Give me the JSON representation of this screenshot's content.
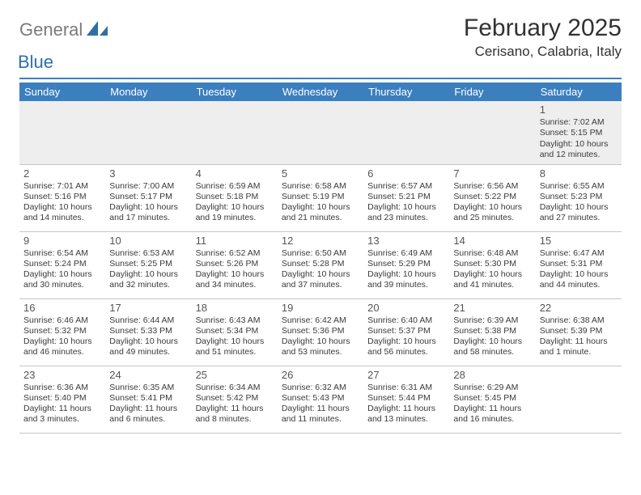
{
  "logo": {
    "general": "General",
    "blue": "Blue"
  },
  "title": "February 2025",
  "location": "Cerisano, Calabria, Italy",
  "colors": {
    "header_bar": "#3b7fbf",
    "header_text": "#ffffff",
    "rule": "#3b7fbf",
    "cell_border": "#c6c6c6",
    "first_row_bg": "#eeeeee",
    "text": "#3a3a3a",
    "logo_gray": "#7a7a7a",
    "logo_blue": "#2f6fa8"
  },
  "day_headers": [
    "Sunday",
    "Monday",
    "Tuesday",
    "Wednesday",
    "Thursday",
    "Friday",
    "Saturday"
  ],
  "weeks": [
    [
      null,
      null,
      null,
      null,
      null,
      null,
      {
        "n": "1",
        "sr": "Sunrise: 7:02 AM",
        "ss": "Sunset: 5:15 PM",
        "d1": "Daylight: 10 hours",
        "d2": "and 12 minutes."
      }
    ],
    [
      {
        "n": "2",
        "sr": "Sunrise: 7:01 AM",
        "ss": "Sunset: 5:16 PM",
        "d1": "Daylight: 10 hours",
        "d2": "and 14 minutes."
      },
      {
        "n": "3",
        "sr": "Sunrise: 7:00 AM",
        "ss": "Sunset: 5:17 PM",
        "d1": "Daylight: 10 hours",
        "d2": "and 17 minutes."
      },
      {
        "n": "4",
        "sr": "Sunrise: 6:59 AM",
        "ss": "Sunset: 5:18 PM",
        "d1": "Daylight: 10 hours",
        "d2": "and 19 minutes."
      },
      {
        "n": "5",
        "sr": "Sunrise: 6:58 AM",
        "ss": "Sunset: 5:19 PM",
        "d1": "Daylight: 10 hours",
        "d2": "and 21 minutes."
      },
      {
        "n": "6",
        "sr": "Sunrise: 6:57 AM",
        "ss": "Sunset: 5:21 PM",
        "d1": "Daylight: 10 hours",
        "d2": "and 23 minutes."
      },
      {
        "n": "7",
        "sr": "Sunrise: 6:56 AM",
        "ss": "Sunset: 5:22 PM",
        "d1": "Daylight: 10 hours",
        "d2": "and 25 minutes."
      },
      {
        "n": "8",
        "sr": "Sunrise: 6:55 AM",
        "ss": "Sunset: 5:23 PM",
        "d1": "Daylight: 10 hours",
        "d2": "and 27 minutes."
      }
    ],
    [
      {
        "n": "9",
        "sr": "Sunrise: 6:54 AM",
        "ss": "Sunset: 5:24 PM",
        "d1": "Daylight: 10 hours",
        "d2": "and 30 minutes."
      },
      {
        "n": "10",
        "sr": "Sunrise: 6:53 AM",
        "ss": "Sunset: 5:25 PM",
        "d1": "Daylight: 10 hours",
        "d2": "and 32 minutes."
      },
      {
        "n": "11",
        "sr": "Sunrise: 6:52 AM",
        "ss": "Sunset: 5:26 PM",
        "d1": "Daylight: 10 hours",
        "d2": "and 34 minutes."
      },
      {
        "n": "12",
        "sr": "Sunrise: 6:50 AM",
        "ss": "Sunset: 5:28 PM",
        "d1": "Daylight: 10 hours",
        "d2": "and 37 minutes."
      },
      {
        "n": "13",
        "sr": "Sunrise: 6:49 AM",
        "ss": "Sunset: 5:29 PM",
        "d1": "Daylight: 10 hours",
        "d2": "and 39 minutes."
      },
      {
        "n": "14",
        "sr": "Sunrise: 6:48 AM",
        "ss": "Sunset: 5:30 PM",
        "d1": "Daylight: 10 hours",
        "d2": "and 41 minutes."
      },
      {
        "n": "15",
        "sr": "Sunrise: 6:47 AM",
        "ss": "Sunset: 5:31 PM",
        "d1": "Daylight: 10 hours",
        "d2": "and 44 minutes."
      }
    ],
    [
      {
        "n": "16",
        "sr": "Sunrise: 6:46 AM",
        "ss": "Sunset: 5:32 PM",
        "d1": "Daylight: 10 hours",
        "d2": "and 46 minutes."
      },
      {
        "n": "17",
        "sr": "Sunrise: 6:44 AM",
        "ss": "Sunset: 5:33 PM",
        "d1": "Daylight: 10 hours",
        "d2": "and 49 minutes."
      },
      {
        "n": "18",
        "sr": "Sunrise: 6:43 AM",
        "ss": "Sunset: 5:34 PM",
        "d1": "Daylight: 10 hours",
        "d2": "and 51 minutes."
      },
      {
        "n": "19",
        "sr": "Sunrise: 6:42 AM",
        "ss": "Sunset: 5:36 PM",
        "d1": "Daylight: 10 hours",
        "d2": "and 53 minutes."
      },
      {
        "n": "20",
        "sr": "Sunrise: 6:40 AM",
        "ss": "Sunset: 5:37 PM",
        "d1": "Daylight: 10 hours",
        "d2": "and 56 minutes."
      },
      {
        "n": "21",
        "sr": "Sunrise: 6:39 AM",
        "ss": "Sunset: 5:38 PM",
        "d1": "Daylight: 10 hours",
        "d2": "and 58 minutes."
      },
      {
        "n": "22",
        "sr": "Sunrise: 6:38 AM",
        "ss": "Sunset: 5:39 PM",
        "d1": "Daylight: 11 hours",
        "d2": "and 1 minute."
      }
    ],
    [
      {
        "n": "23",
        "sr": "Sunrise: 6:36 AM",
        "ss": "Sunset: 5:40 PM",
        "d1": "Daylight: 11 hours",
        "d2": "and 3 minutes."
      },
      {
        "n": "24",
        "sr": "Sunrise: 6:35 AM",
        "ss": "Sunset: 5:41 PM",
        "d1": "Daylight: 11 hours",
        "d2": "and 6 minutes."
      },
      {
        "n": "25",
        "sr": "Sunrise: 6:34 AM",
        "ss": "Sunset: 5:42 PM",
        "d1": "Daylight: 11 hours",
        "d2": "and 8 minutes."
      },
      {
        "n": "26",
        "sr": "Sunrise: 6:32 AM",
        "ss": "Sunset: 5:43 PM",
        "d1": "Daylight: 11 hours",
        "d2": "and 11 minutes."
      },
      {
        "n": "27",
        "sr": "Sunrise: 6:31 AM",
        "ss": "Sunset: 5:44 PM",
        "d1": "Daylight: 11 hours",
        "d2": "and 13 minutes."
      },
      {
        "n": "28",
        "sr": "Sunrise: 6:29 AM",
        "ss": "Sunset: 5:45 PM",
        "d1": "Daylight: 11 hours",
        "d2": "and 16 minutes."
      },
      null
    ]
  ]
}
